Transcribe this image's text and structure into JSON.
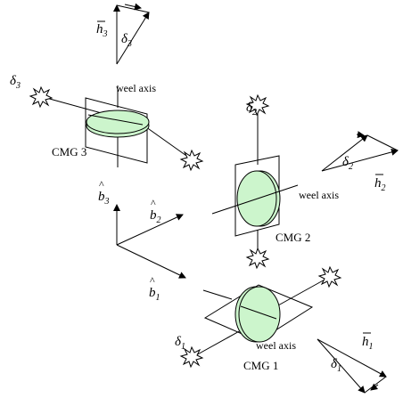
{
  "colors": {
    "disk_fill": "#ccf5cc",
    "stroke": "#000000",
    "background": "#ffffff"
  },
  "labels": {
    "weel_axis": "weel axis",
    "cmg1": "CMG 1",
    "cmg2": "CMG 2",
    "cmg3": "CMG 3",
    "h": "h",
    "b": "b",
    "delta": "δ",
    "sub1": "1",
    "sub2": "2",
    "sub3": "3"
  },
  "icons": [
    "starburst-icon"
  ]
}
